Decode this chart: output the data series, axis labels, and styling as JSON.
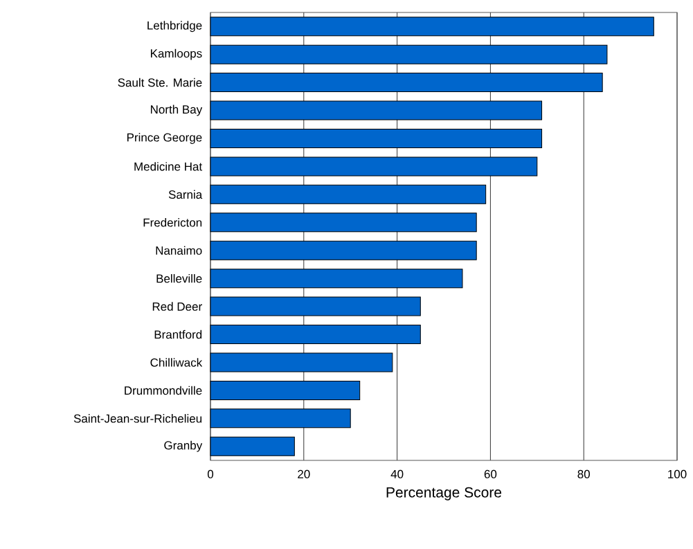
{
  "chart_data": {
    "type": "bar",
    "orientation": "horizontal",
    "xlabel": "Percentage Score",
    "categories": [
      "Lethbridge",
      "Kamloops",
      "Sault Ste. Marie",
      "North Bay",
      "Prince George",
      "Medicine Hat",
      "Sarnia",
      "Fredericton",
      "Nanaimo",
      "Belleville",
      "Red Deer",
      "Brantford",
      "Chilliwack",
      "Drummondville",
      "Saint-Jean-sur-Richelieu",
      "Granby"
    ],
    "values": [
      95,
      85,
      84,
      71,
      71,
      70,
      59,
      57,
      57,
      54,
      45,
      45,
      39,
      32,
      30,
      18
    ],
    "color": "#0066cc",
    "xlim": [
      0,
      100
    ],
    "xticks": [
      0,
      20,
      40,
      60,
      80,
      100
    ],
    "grid": "x"
  }
}
